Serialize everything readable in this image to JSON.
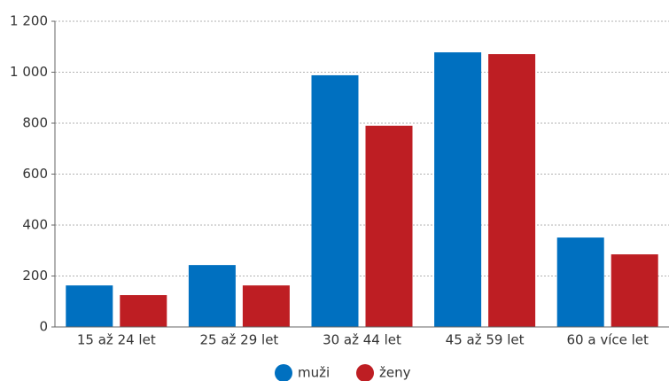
{
  "chart_data": {
    "type": "bar",
    "categories": [
      "15 až 24 let",
      "25 až 29 let",
      "30 až 44 let",
      "45 až 59 let",
      "60 a více let"
    ],
    "series": [
      {
        "name": "muži",
        "color": "#0070c0",
        "values": [
          163,
          243,
          988,
          1078,
          351
        ]
      },
      {
        "name": "ženy",
        "color": "#be1e23",
        "values": [
          125,
          163,
          790,
          1071,
          285
        ]
      }
    ],
    "ylim": [
      0,
      1200
    ],
    "yticks": [
      0,
      200,
      400,
      600,
      800,
      {
        "value": 1000,
        "label": "1 000"
      },
      {
        "value": 1200,
        "label": "1 200"
      }
    ],
    "grid": true
  }
}
